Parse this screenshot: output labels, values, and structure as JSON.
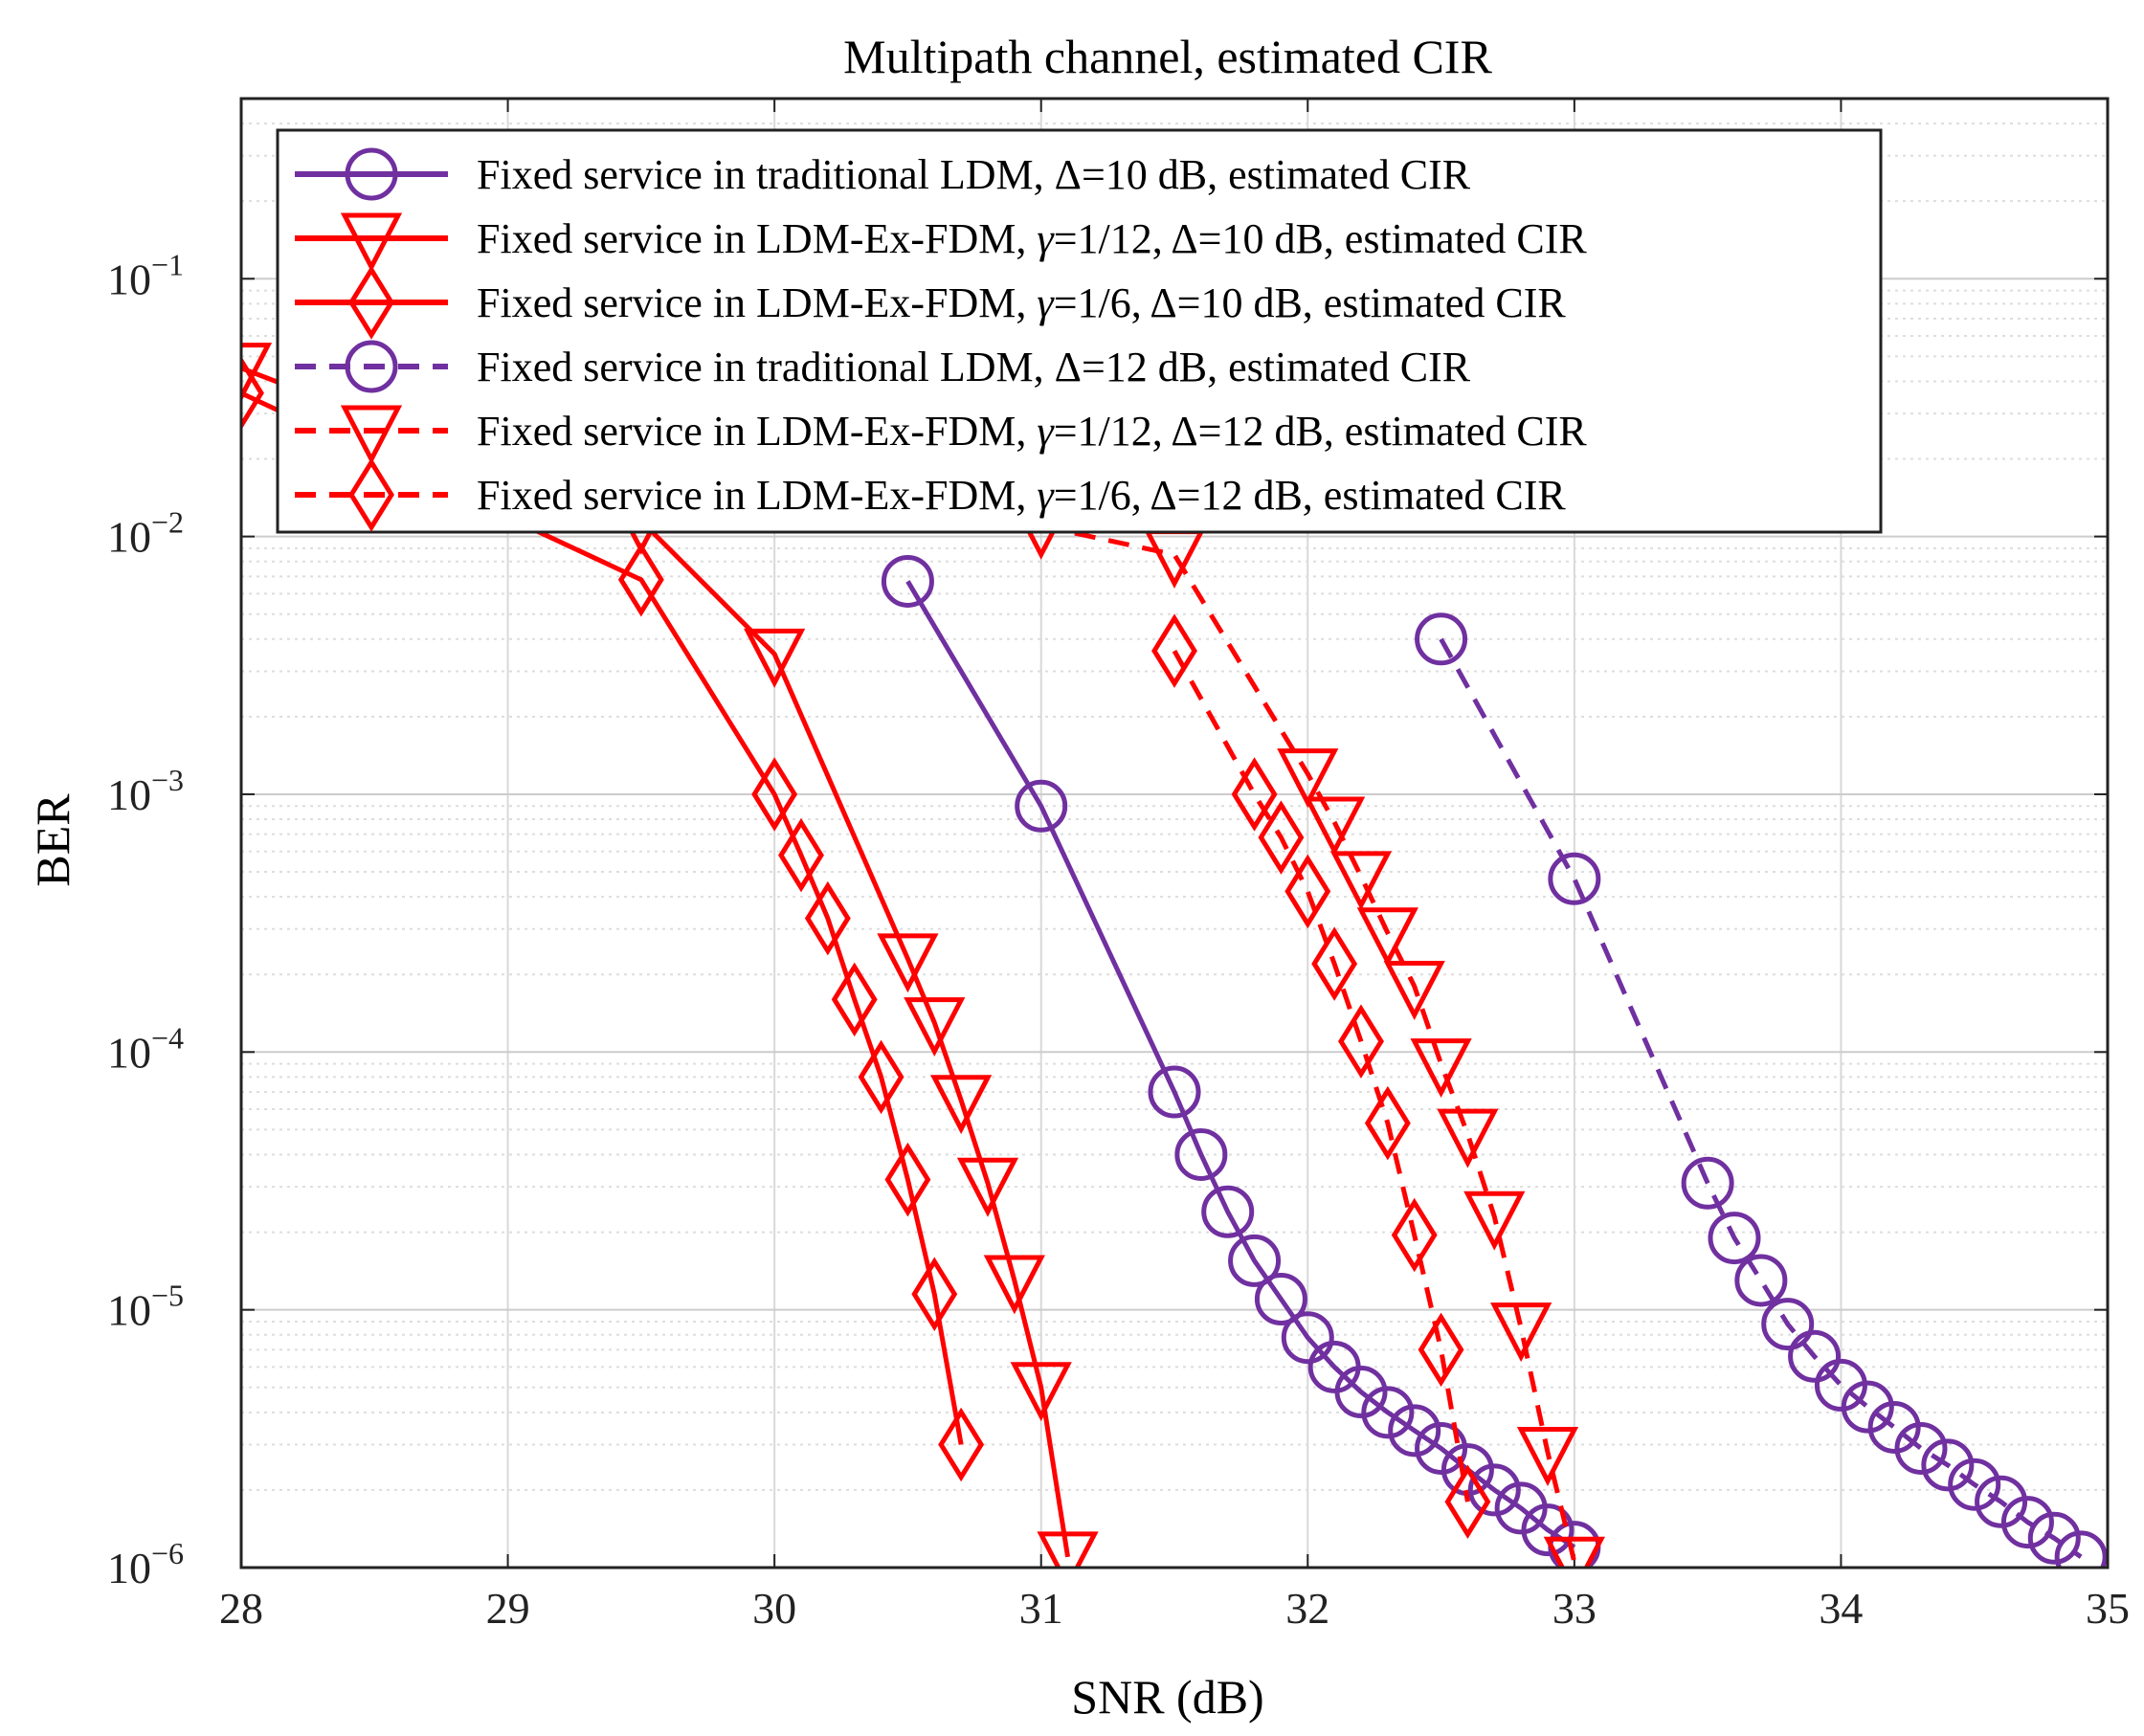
{
  "chart_data": {
    "type": "line",
    "title": "Multipath channel, estimated CIR",
    "xlabel": "SNR (dB)",
    "ylabel": "BER",
    "xlim": [
      28,
      35
    ],
    "ylim": [
      1e-06,
      0.5
    ],
    "yscale": "log",
    "grid": true,
    "legend_position": "top-left",
    "x_ticks": [
      "28",
      "29",
      "30",
      "31",
      "32",
      "33",
      "34",
      "35"
    ],
    "y_ticks": [
      {
        "base": "10",
        "exp": "−6",
        "value": 1e-06
      },
      {
        "base": "10",
        "exp": "−5",
        "value": 1e-05
      },
      {
        "base": "10",
        "exp": "−4",
        "value": 0.0001
      },
      {
        "base": "10",
        "exp": "−3",
        "value": 0.001
      },
      {
        "base": "10",
        "exp": "−2",
        "value": 0.01
      },
      {
        "base": "10",
        "exp": "−1",
        "value": 0.1
      }
    ],
    "series": [
      {
        "id": "s1",
        "legend": {
          "pre": "Fixed service in traditional LDM, ",
          "mid": "Δ=10 dB, estimated CIR",
          "sym": "",
          "post": ""
        },
        "color": "#7030a0",
        "dash": "solid",
        "marker": "circle",
        "x": [
          30.5,
          31.0,
          31.5,
          31.6,
          31.7,
          31.8,
          31.9,
          32.0,
          32.1,
          32.2,
          32.3,
          32.4,
          32.5,
          32.6,
          32.7,
          32.8,
          32.9,
          33.0
        ],
        "y": [
          0.0067,
          0.0009,
          7e-05,
          4e-05,
          2.4e-05,
          1.55e-05,
          1.1e-05,
          7.8e-06,
          6e-06,
          4.8e-06,
          4e-06,
          3.4e-06,
          2.9e-06,
          2.4e-06,
          2e-06,
          1.7e-06,
          1.4e-06,
          1.2e-06
        ]
      },
      {
        "id": "s2",
        "legend": {
          "pre": "Fixed service in LDM-Ex-FDM, ",
          "sym": "γ",
          "mid": "=1/12, Δ=10 dB, estimated CIR",
          "post": ""
        },
        "color": "#ff0000",
        "dash": "solid",
        "marker": "triangle-down",
        "x": [
          28.0,
          29.5,
          30.0,
          30.5,
          30.6,
          30.7,
          30.8,
          30.9,
          31.0,
          31.1
        ],
        "y": [
          0.045,
          0.0115,
          0.0035,
          0.00023,
          0.00013,
          6.5e-05,
          3.1e-05,
          1.3e-05,
          5e-06,
          1.1e-06
        ]
      },
      {
        "id": "s3",
        "legend": {
          "pre": "Fixed service in LDM-Ex-FDM, ",
          "sym": "γ",
          "mid": "=1/6, Δ=10 dB, estimated CIR",
          "post": ""
        },
        "color": "#ff0000",
        "dash": "solid",
        "marker": "diamond",
        "x": [
          28.0,
          29.5,
          30.0,
          30.1,
          30.2,
          30.3,
          30.4,
          30.5,
          30.6,
          30.7
        ],
        "y": [
          0.036,
          0.0068,
          0.001,
          0.00058,
          0.00033,
          0.00016,
          8e-05,
          3.2e-05,
          1.15e-05,
          3e-06
        ]
      },
      {
        "id": "s4",
        "legend": {
          "pre": "Fixed service in traditional LDM, ",
          "sym": "",
          "mid": "Δ=12 dB, estimated CIR",
          "post": ""
        },
        "color": "#7030a0",
        "dash": "dashed",
        "marker": "circle",
        "x": [
          32.5,
          33.0,
          33.5,
          33.6,
          33.7,
          33.8,
          33.9,
          34.0,
          34.1,
          34.2,
          34.3,
          34.4,
          34.5,
          34.6,
          34.7,
          34.8,
          34.9
        ],
        "y": [
          0.004,
          0.00047,
          3.1e-05,
          1.9e-05,
          1.3e-05,
          8.8e-06,
          6.6e-06,
          5.1e-06,
          4.2e-06,
          3.5e-06,
          2.9e-06,
          2.5e-06,
          2.1e-06,
          1.8e-06,
          1.5e-06,
          1.3e-06,
          1.1e-06
        ]
      },
      {
        "id": "s5",
        "legend": {
          "pre": "Fixed service in LDM-Ex-FDM, ",
          "sym": "γ",
          "mid": "=1/12, Δ=12 dB, estimated CIR",
          "post": ""
        },
        "color": "#ff0000",
        "dash": "dashed",
        "marker": "triangle-down",
        "x": [
          31.0,
          31.5,
          32.0,
          32.1,
          32.2,
          32.3,
          32.4,
          32.5,
          32.6,
          32.7,
          32.8,
          32.9,
          33.0
        ],
        "y": [
          0.011,
          0.0085,
          0.0012,
          0.00078,
          0.00048,
          0.00029,
          0.00018,
          9e-05,
          4.8e-05,
          2.3e-05,
          8.5e-06,
          2.8e-06,
          1.05e-06
        ]
      },
      {
        "id": "s6",
        "legend": {
          "pre": "Fixed service in LDM-Ex-FDM, ",
          "sym": "γ",
          "mid": "=1/6, Δ=12 dB, estimated CIR",
          "post": ""
        },
        "color": "#ff0000",
        "dash": "dashed",
        "marker": "diamond",
        "x": [
          31.5,
          31.8,
          31.9,
          32.0,
          32.1,
          32.2,
          32.3,
          32.4,
          32.5,
          32.6
        ],
        "y": [
          0.0036,
          0.001,
          0.00068,
          0.00042,
          0.00022,
          0.00011,
          5.3e-05,
          1.95e-05,
          7e-06,
          1.8e-06
        ]
      }
    ]
  }
}
